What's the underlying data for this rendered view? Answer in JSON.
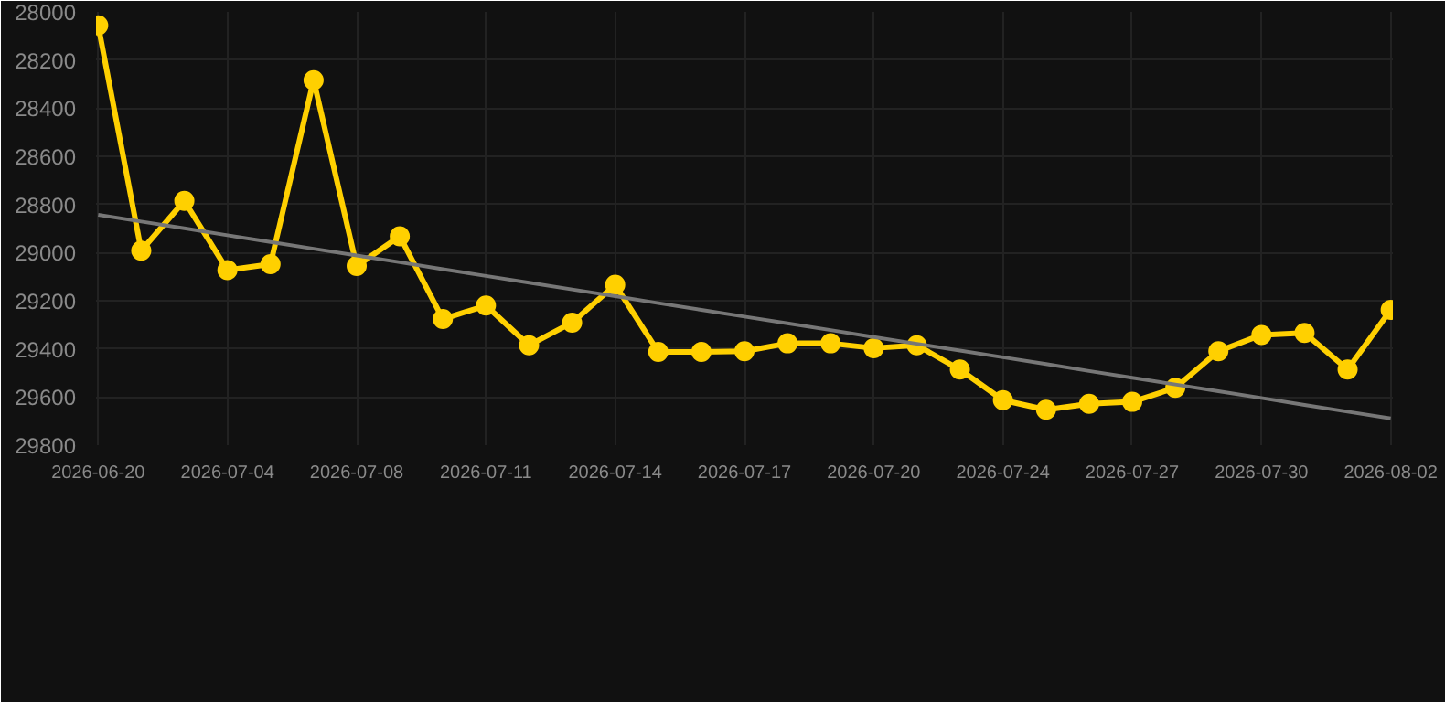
{
  "chart_data": {
    "type": "line",
    "categories": [
      "2026-06-20",
      null,
      null,
      "2026-07-04",
      null,
      null,
      "2026-07-08",
      null,
      null,
      "2026-07-11",
      null,
      null,
      "2026-07-14",
      null,
      null,
      "2026-07-17",
      null,
      null,
      "2026-07-20",
      null,
      null,
      "2026-07-24",
      null,
      null,
      "2026-07-27",
      null,
      null,
      "2026-07-30",
      null,
      null,
      "2026-08-02"
    ],
    "series": [
      {
        "color": "#ffd000",
        "marker": "circle",
        "values": [
          28056,
          28992,
          28785,
          29073,
          29048,
          28284,
          29056,
          28932,
          29276,
          29220,
          29385,
          29291,
          29134,
          29413,
          29413,
          29410,
          29377,
          29377,
          29397,
          29385,
          29486,
          29613,
          29653,
          29628,
          29620,
          29562,
          29410,
          29342,
          29334,
          29486,
          29238
        ]
      },
      {
        "type": "line",
        "color": "#777777",
        "marker": "none",
        "values": [
          28843,
          28871,
          28899,
          28928,
          28956,
          28984,
          29012,
          29040,
          29069,
          29097,
          29125,
          29153,
          29181,
          29210,
          29238,
          29266,
          29294,
          29322,
          29351,
          29379,
          29407,
          29435,
          29463,
          29492,
          29520,
          29548,
          29576,
          29604,
          29633,
          29661,
          29689
        ]
      }
    ],
    "ylim": [
      29800,
      28000
    ],
    "yticks": [
      28000,
      28200,
      28400,
      28600,
      28800,
      29000,
      29200,
      29400,
      29600,
      29800
    ],
    "grid": true
  }
}
